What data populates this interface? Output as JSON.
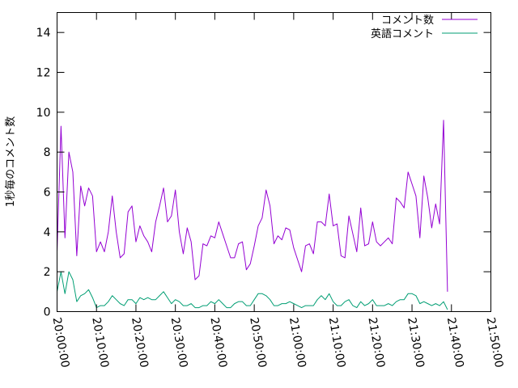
{
  "chart_data": {
    "type": "line",
    "title": "",
    "xlabel": "",
    "ylabel": "1秒毎のコメント数",
    "xlim": [
      "20:00:00",
      "21:50:00"
    ],
    "ylim": [
      0,
      15
    ],
    "x_ticks": [
      "20:00:00",
      "20:10:00",
      "20:20:00",
      "20:30:00",
      "20:40:00",
      "20:50:00",
      "21:00:00",
      "21:10:00",
      "21:20:00",
      "21:30:00",
      "21:40:00",
      "21:50:00"
    ],
    "y_ticks": [
      "0",
      "2",
      "4",
      "6",
      "8",
      "10",
      "12",
      "14"
    ],
    "legend_position": "top-right",
    "grid": false,
    "colors": {
      "comments": "#9400d3",
      "english": "#009e73"
    },
    "series": [
      {
        "name": "コメント数",
        "color": "#9400d3",
        "points": [
          [
            "20:00:00",
            3.0
          ],
          [
            "20:01:00",
            9.3
          ],
          [
            "20:02:00",
            3.7
          ],
          [
            "20:03:00",
            8.0
          ],
          [
            "20:04:00",
            7.0
          ],
          [
            "20:05:00",
            2.8
          ],
          [
            "20:06:00",
            6.3
          ],
          [
            "20:07:00",
            5.3
          ],
          [
            "20:08:00",
            6.2
          ],
          [
            "20:09:00",
            5.8
          ],
          [
            "20:10:00",
            3.0
          ],
          [
            "20:11:00",
            3.5
          ],
          [
            "20:12:00",
            3.0
          ],
          [
            "20:13:00",
            4.0
          ],
          [
            "20:14:00",
            5.8
          ],
          [
            "20:15:00",
            4.0
          ],
          [
            "20:16:00",
            2.7
          ],
          [
            "20:17:00",
            2.9
          ],
          [
            "20:18:00",
            5.0
          ],
          [
            "20:19:00",
            5.3
          ],
          [
            "20:20:00",
            3.5
          ],
          [
            "20:21:00",
            4.3
          ],
          [
            "20:22:00",
            3.8
          ],
          [
            "20:23:00",
            3.5
          ],
          [
            "20:24:00",
            3.0
          ],
          [
            "20:25:00",
            4.5
          ],
          [
            "20:26:00",
            5.3
          ],
          [
            "20:27:00",
            6.2
          ],
          [
            "20:28:00",
            4.5
          ],
          [
            "20:29:00",
            4.8
          ],
          [
            "20:30:00",
            6.1
          ],
          [
            "20:31:00",
            4.0
          ],
          [
            "20:32:00",
            2.9
          ],
          [
            "20:33:00",
            4.2
          ],
          [
            "20:34:00",
            3.5
          ],
          [
            "20:35:00",
            1.6
          ],
          [
            "20:36:00",
            1.8
          ],
          [
            "20:37:00",
            3.4
          ],
          [
            "20:38:00",
            3.3
          ],
          [
            "20:39:00",
            3.8
          ],
          [
            "20:40:00",
            3.7
          ],
          [
            "20:41:00",
            4.5
          ],
          [
            "20:42:00",
            3.9
          ],
          [
            "20:43:00",
            3.3
          ],
          [
            "20:44:00",
            2.7
          ],
          [
            "20:45:00",
            2.7
          ],
          [
            "20:46:00",
            3.4
          ],
          [
            "20:47:00",
            3.5
          ],
          [
            "20:48:00",
            2.1
          ],
          [
            "20:49:00",
            2.4
          ],
          [
            "20:50:00",
            3.3
          ],
          [
            "20:51:00",
            4.3
          ],
          [
            "20:52:00",
            4.7
          ],
          [
            "20:53:00",
            6.1
          ],
          [
            "20:54:00",
            5.3
          ],
          [
            "20:55:00",
            3.4
          ],
          [
            "20:56:00",
            3.8
          ],
          [
            "20:57:00",
            3.6
          ],
          [
            "20:58:00",
            4.2
          ],
          [
            "20:59:00",
            4.1
          ],
          [
            "21:00:00",
            3.2
          ],
          [
            "21:01:00",
            2.6
          ],
          [
            "21:02:00",
            2.0
          ],
          [
            "21:03:00",
            3.3
          ],
          [
            "21:04:00",
            3.4
          ],
          [
            "21:05:00",
            2.9
          ],
          [
            "21:06:00",
            4.5
          ],
          [
            "21:07:00",
            4.5
          ],
          [
            "21:08:00",
            4.3
          ],
          [
            "21:09:00",
            5.9
          ],
          [
            "21:10:00",
            4.3
          ],
          [
            "21:11:00",
            4.4
          ],
          [
            "21:12:00",
            2.8
          ],
          [
            "21:13:00",
            2.7
          ],
          [
            "21:14:00",
            4.8
          ],
          [
            "21:15:00",
            3.9
          ],
          [
            "21:16:00",
            3.0
          ],
          [
            "21:17:00",
            5.2
          ],
          [
            "21:18:00",
            3.3
          ],
          [
            "21:19:00",
            3.4
          ],
          [
            "21:20:00",
            4.5
          ],
          [
            "21:21:00",
            3.5
          ],
          [
            "21:22:00",
            3.3
          ],
          [
            "21:23:00",
            3.5
          ],
          [
            "21:24:00",
            3.7
          ],
          [
            "21:25:00",
            3.4
          ],
          [
            "21:26:00",
            5.7
          ],
          [
            "21:27:00",
            5.5
          ],
          [
            "21:28:00",
            5.2
          ],
          [
            "21:29:00",
            7.0
          ],
          [
            "21:30:00",
            6.4
          ],
          [
            "21:31:00",
            5.8
          ],
          [
            "21:32:00",
            3.7
          ],
          [
            "21:33:00",
            6.8
          ],
          [
            "21:34:00",
            5.7
          ],
          [
            "21:35:00",
            4.2
          ],
          [
            "21:36:00",
            5.4
          ],
          [
            "21:37:00",
            4.4
          ],
          [
            "21:38:00",
            9.6
          ],
          [
            "21:39:00",
            1.0
          ]
        ]
      },
      {
        "name": "英語コメント",
        "color": "#009e73",
        "points": [
          [
            "20:00:00",
            1.0
          ],
          [
            "20:01:00",
            2.0
          ],
          [
            "20:02:00",
            0.9
          ],
          [
            "20:03:00",
            2.0
          ],
          [
            "20:04:00",
            1.6
          ],
          [
            "20:05:00",
            0.5
          ],
          [
            "20:06:00",
            0.8
          ],
          [
            "20:07:00",
            0.9
          ],
          [
            "20:08:00",
            1.1
          ],
          [
            "20:09:00",
            0.7
          ],
          [
            "20:10:00",
            0.2
          ],
          [
            "20:11:00",
            0.3
          ],
          [
            "20:12:00",
            0.3
          ],
          [
            "20:13:00",
            0.5
          ],
          [
            "20:14:00",
            0.8
          ],
          [
            "20:15:00",
            0.6
          ],
          [
            "20:16:00",
            0.4
          ],
          [
            "20:17:00",
            0.3
          ],
          [
            "20:18:00",
            0.6
          ],
          [
            "20:19:00",
            0.6
          ],
          [
            "20:20:00",
            0.4
          ],
          [
            "20:21:00",
            0.7
          ],
          [
            "20:22:00",
            0.6
          ],
          [
            "20:23:00",
            0.7
          ],
          [
            "20:24:00",
            0.6
          ],
          [
            "20:25:00",
            0.6
          ],
          [
            "20:26:00",
            0.8
          ],
          [
            "20:27:00",
            1.0
          ],
          [
            "20:28:00",
            0.7
          ],
          [
            "20:29:00",
            0.4
          ],
          [
            "20:30:00",
            0.6
          ],
          [
            "20:31:00",
            0.5
          ],
          [
            "20:32:00",
            0.3
          ],
          [
            "20:33:00",
            0.3
          ],
          [
            "20:34:00",
            0.4
          ],
          [
            "20:35:00",
            0.2
          ],
          [
            "20:36:00",
            0.2
          ],
          [
            "20:37:00",
            0.3
          ],
          [
            "20:38:00",
            0.3
          ],
          [
            "20:39:00",
            0.5
          ],
          [
            "20:40:00",
            0.4
          ],
          [
            "20:41:00",
            0.6
          ],
          [
            "20:42:00",
            0.4
          ],
          [
            "20:43:00",
            0.2
          ],
          [
            "20:44:00",
            0.2
          ],
          [
            "20:45:00",
            0.4
          ],
          [
            "20:46:00",
            0.5
          ],
          [
            "20:47:00",
            0.5
          ],
          [
            "20:48:00",
            0.3
          ],
          [
            "20:49:00",
            0.3
          ],
          [
            "20:50:00",
            0.6
          ],
          [
            "20:51:00",
            0.9
          ],
          [
            "20:52:00",
            0.9
          ],
          [
            "20:53:00",
            0.8
          ],
          [
            "20:54:00",
            0.6
          ],
          [
            "20:55:00",
            0.3
          ],
          [
            "20:56:00",
            0.3
          ],
          [
            "20:57:00",
            0.4
          ],
          [
            "20:58:00",
            0.4
          ],
          [
            "20:59:00",
            0.5
          ],
          [
            "21:00:00",
            0.4
          ],
          [
            "21:01:00",
            0.3
          ],
          [
            "21:02:00",
            0.2
          ],
          [
            "21:03:00",
            0.3
          ],
          [
            "21:04:00",
            0.3
          ],
          [
            "21:05:00",
            0.3
          ],
          [
            "21:06:00",
            0.6
          ],
          [
            "21:07:00",
            0.8
          ],
          [
            "21:08:00",
            0.6
          ],
          [
            "21:09:00",
            0.9
          ],
          [
            "21:10:00",
            0.5
          ],
          [
            "21:11:00",
            0.3
          ],
          [
            "21:12:00",
            0.3
          ],
          [
            "21:13:00",
            0.5
          ],
          [
            "21:14:00",
            0.6
          ],
          [
            "21:15:00",
            0.3
          ],
          [
            "21:16:00",
            0.2
          ],
          [
            "21:17:00",
            0.5
          ],
          [
            "21:18:00",
            0.3
          ],
          [
            "21:19:00",
            0.4
          ],
          [
            "21:20:00",
            0.6
          ],
          [
            "21:21:00",
            0.3
          ],
          [
            "21:22:00",
            0.3
          ],
          [
            "21:23:00",
            0.3
          ],
          [
            "21:24:00",
            0.4
          ],
          [
            "21:25:00",
            0.3
          ],
          [
            "21:26:00",
            0.5
          ],
          [
            "21:27:00",
            0.6
          ],
          [
            "21:28:00",
            0.6
          ],
          [
            "21:29:00",
            0.9
          ],
          [
            "21:30:00",
            0.9
          ],
          [
            "21:31:00",
            0.8
          ],
          [
            "21:32:00",
            0.4
          ],
          [
            "21:33:00",
            0.5
          ],
          [
            "21:34:00",
            0.4
          ],
          [
            "21:35:00",
            0.3
          ],
          [
            "21:36:00",
            0.4
          ],
          [
            "21:37:00",
            0.3
          ],
          [
            "21:38:00",
            0.5
          ],
          [
            "21:39:00",
            0.1
          ]
        ]
      }
    ]
  }
}
